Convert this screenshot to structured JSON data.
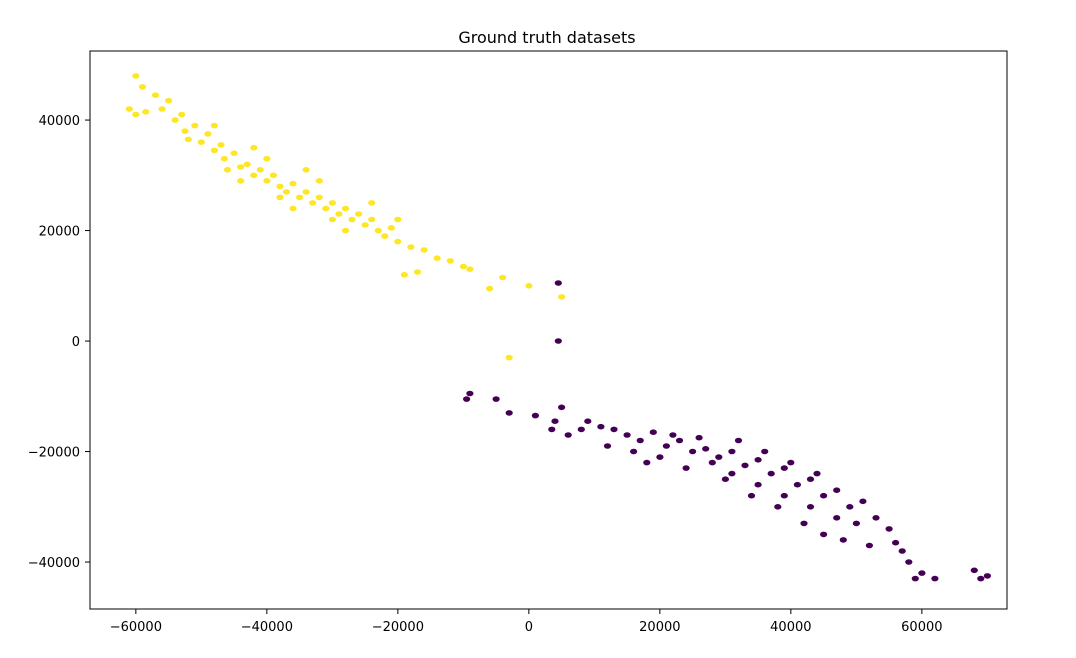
{
  "chart_data": {
    "type": "scatter",
    "title": "Ground truth datasets",
    "xlabel": "",
    "ylabel": "",
    "xlim": [
      -67000,
      73000
    ],
    "ylim": [
      -48500,
      52500
    ],
    "xticks": [
      -60000,
      -40000,
      -20000,
      0,
      20000,
      40000,
      60000
    ],
    "xtick_labels": [
      "−60000",
      "−40000",
      "−20000",
      "0",
      "20000",
      "40000",
      "60000"
    ],
    "yticks": [
      -40000,
      -20000,
      0,
      20000,
      40000
    ],
    "ytick_labels": [
      "−40000",
      "−20000",
      "0",
      "20000",
      "40000"
    ],
    "grid": false,
    "legend": "none",
    "colors": {
      "yellow": "#fde725",
      "purple": "#440154"
    },
    "series": [
      {
        "color": "#fde725",
        "points": [
          [
            -60000,
            48000
          ],
          [
            -59000,
            46000
          ],
          [
            -61000,
            42000
          ],
          [
            -60000,
            41000
          ],
          [
            -58500,
            41500
          ],
          [
            -57000,
            44500
          ],
          [
            -56000,
            42000
          ],
          [
            -55000,
            43500
          ],
          [
            -54000,
            40000
          ],
          [
            -53000,
            41000
          ],
          [
            -52500,
            38000
          ],
          [
            -51000,
            39000
          ],
          [
            -50000,
            36000
          ],
          [
            -49000,
            37500
          ],
          [
            -48000,
            34500
          ],
          [
            -47000,
            35500
          ],
          [
            -46500,
            33000
          ],
          [
            -45000,
            34000
          ],
          [
            -44000,
            31500
          ],
          [
            -43000,
            32000
          ],
          [
            -42000,
            30000
          ],
          [
            -41000,
            31000
          ],
          [
            -40000,
            29000
          ],
          [
            -39000,
            30000
          ],
          [
            -38000,
            28000
          ],
          [
            -37000,
            27000
          ],
          [
            -36000,
            28500
          ],
          [
            -35000,
            26000
          ],
          [
            -34000,
            27000
          ],
          [
            -33000,
            25000
          ],
          [
            -32000,
            26000
          ],
          [
            -31000,
            24000
          ],
          [
            -30000,
            25000
          ],
          [
            -29000,
            23000
          ],
          [
            -28000,
            24000
          ],
          [
            -27000,
            22000
          ],
          [
            -26000,
            23000
          ],
          [
            -25000,
            21000
          ],
          [
            -24000,
            22000
          ],
          [
            -23000,
            20000
          ],
          [
            -22000,
            19000
          ],
          [
            -21000,
            20500
          ],
          [
            -20000,
            18000
          ],
          [
            -18000,
            17000
          ],
          [
            -16000,
            16500
          ],
          [
            -14000,
            15000
          ],
          [
            -12000,
            14500
          ],
          [
            -10000,
            13500
          ],
          [
            -9000,
            13000
          ],
          [
            -17000,
            12500
          ],
          [
            -19000,
            12000
          ],
          [
            -4000,
            11500
          ],
          [
            -6000,
            9500
          ],
          [
            0,
            10000
          ],
          [
            5000,
            8000
          ],
          [
            -3000,
            -3000
          ],
          [
            -52000,
            36500
          ],
          [
            -48000,
            39000
          ],
          [
            -44000,
            29000
          ],
          [
            -40000,
            33000
          ],
          [
            -36000,
            24000
          ],
          [
            -32000,
            29000
          ],
          [
            -28000,
            20000
          ],
          [
            -24000,
            25000
          ],
          [
            -20000,
            22000
          ],
          [
            -46000,
            31000
          ],
          [
            -42000,
            35000
          ],
          [
            -38000,
            26000
          ],
          [
            -34000,
            31000
          ],
          [
            -30000,
            22000
          ]
        ]
      },
      {
        "color": "#440154",
        "points": [
          [
            4500,
            10500
          ],
          [
            4500,
            0
          ],
          [
            -9000,
            -9500
          ],
          [
            -9500,
            -10500
          ],
          [
            -5000,
            -10500
          ],
          [
            -3000,
            -13000
          ],
          [
            1000,
            -13500
          ],
          [
            4000,
            -14500
          ],
          [
            5000,
            -12000
          ],
          [
            3500,
            -16000
          ],
          [
            6000,
            -17000
          ],
          [
            8000,
            -16000
          ],
          [
            9000,
            -14500
          ],
          [
            11000,
            -15500
          ],
          [
            13000,
            -16000
          ],
          [
            15000,
            -17000
          ],
          [
            17000,
            -18000
          ],
          [
            19000,
            -16500
          ],
          [
            21000,
            -19000
          ],
          [
            23000,
            -18000
          ],
          [
            25000,
            -20000
          ],
          [
            27000,
            -19500
          ],
          [
            29000,
            -21000
          ],
          [
            31000,
            -20000
          ],
          [
            33000,
            -22500
          ],
          [
            35000,
            -21500
          ],
          [
            37000,
            -24000
          ],
          [
            39000,
            -23000
          ],
          [
            41000,
            -26000
          ],
          [
            43000,
            -25000
          ],
          [
            45000,
            -28000
          ],
          [
            47000,
            -27000
          ],
          [
            49000,
            -30000
          ],
          [
            51000,
            -29000
          ],
          [
            53000,
            -32000
          ],
          [
            55000,
            -34000
          ],
          [
            56000,
            -36500
          ],
          [
            57000,
            -38000
          ],
          [
            52000,
            -37000
          ],
          [
            58000,
            -40000
          ],
          [
            60000,
            -42000
          ],
          [
            62000,
            -43000
          ],
          [
            59000,
            -43000
          ],
          [
            68000,
            -41500
          ],
          [
            69000,
            -43000
          ],
          [
            70000,
            -42500
          ],
          [
            31000,
            -24000
          ],
          [
            35000,
            -26000
          ],
          [
            39000,
            -28000
          ],
          [
            43000,
            -30000
          ],
          [
            28000,
            -22000
          ],
          [
            32000,
            -18000
          ],
          [
            36000,
            -20000
          ],
          [
            40000,
            -22000
          ],
          [
            44000,
            -24000
          ],
          [
            24000,
            -23000
          ],
          [
            20000,
            -21000
          ],
          [
            16000,
            -20000
          ],
          [
            12000,
            -19000
          ],
          [
            47000,
            -32000
          ],
          [
            50000,
            -33000
          ],
          [
            38000,
            -30000
          ],
          [
            42000,
            -33000
          ],
          [
            45000,
            -35000
          ],
          [
            48000,
            -36000
          ],
          [
            26000,
            -17500
          ],
          [
            30000,
            -25000
          ],
          [
            34000,
            -28000
          ],
          [
            22000,
            -17000
          ],
          [
            18000,
            -22000
          ]
        ]
      }
    ]
  }
}
